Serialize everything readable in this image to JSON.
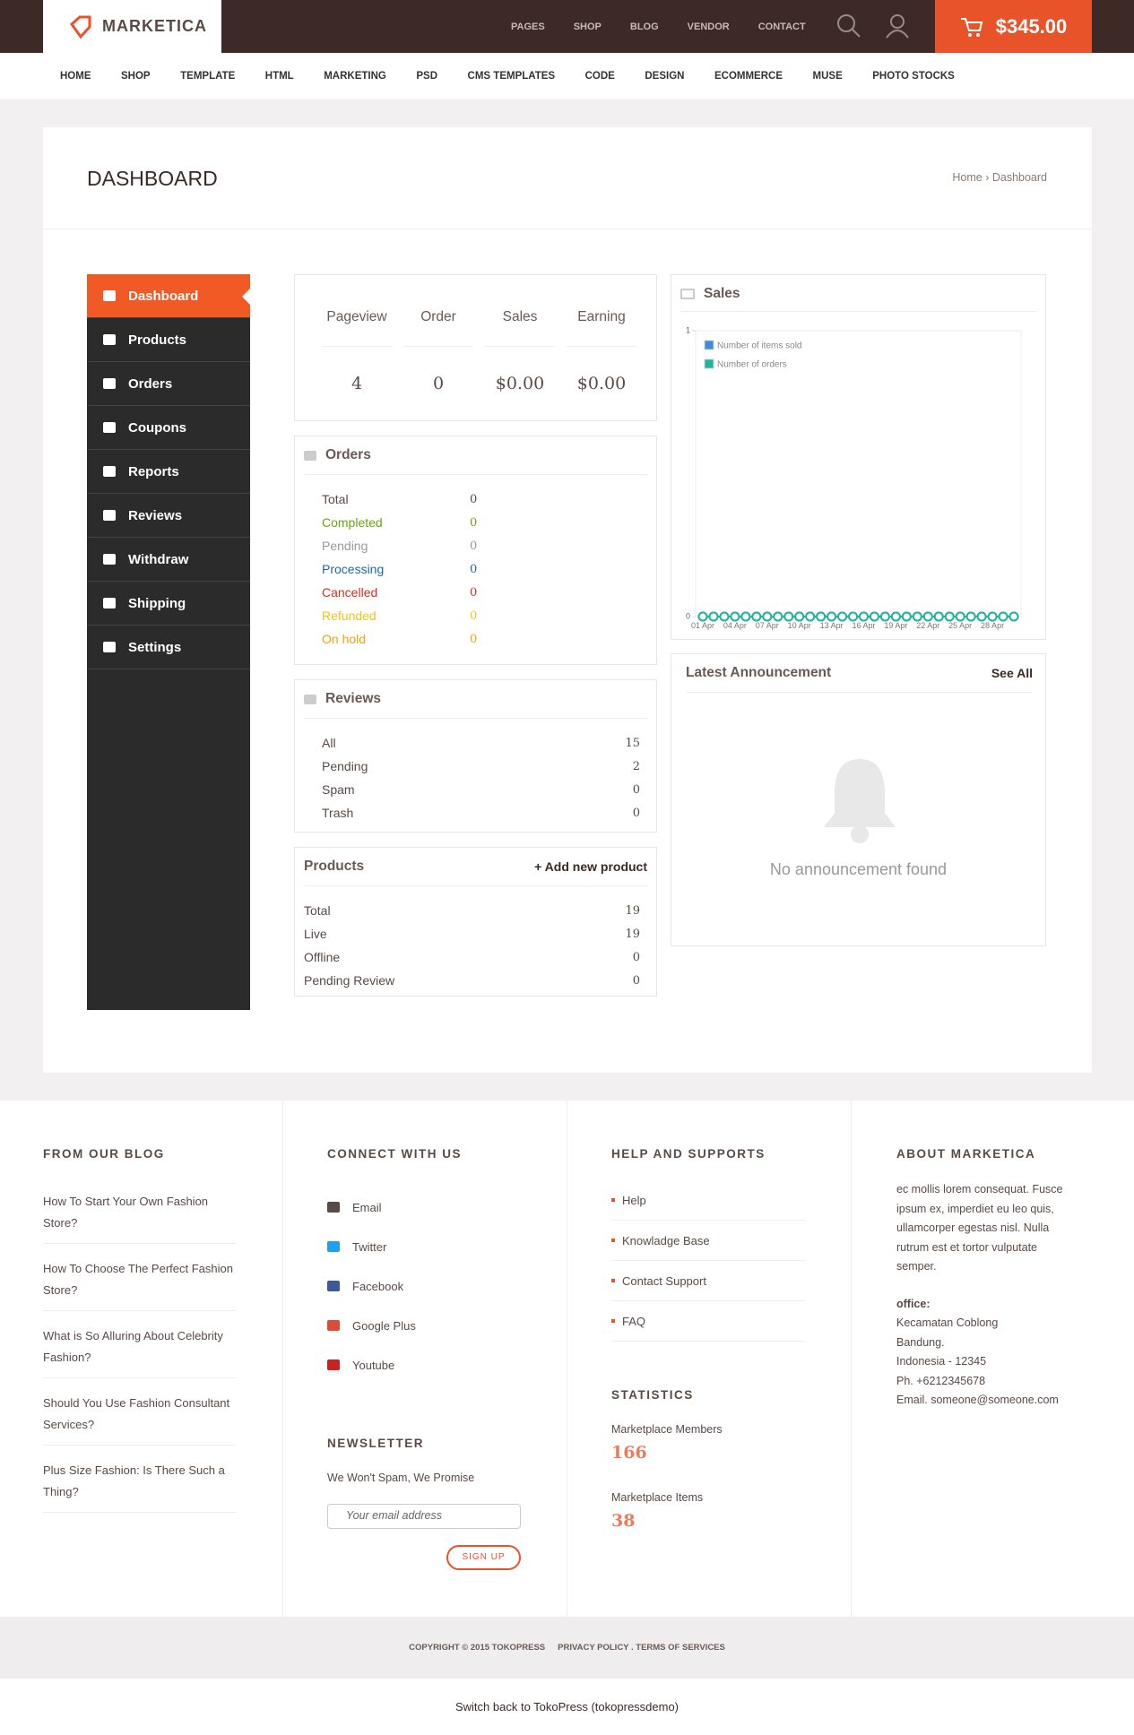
{
  "header": {
    "logo": "MARKETICA",
    "top_links": [
      "PAGES",
      "SHOP",
      "BLOG",
      "VENDOR",
      "CONTACT"
    ],
    "cart_total": "$345.00"
  },
  "nav": [
    "HOME",
    "SHOP",
    "TEMPLATE",
    "HTML",
    "MARKETING",
    "PSD",
    "CMS TEMPLATES",
    "CODE",
    "DESIGN",
    "ECOMMERCE",
    "MUSE",
    "PHOTO STOCKS"
  ],
  "page": {
    "title": "DASHBOARD",
    "breadcrumb": "Home › Dashboard"
  },
  "sidebar": [
    "Dashboard",
    "Products",
    "Orders",
    "Coupons",
    "Reports",
    "Reviews",
    "Withdraw",
    "Shipping",
    "Settings"
  ],
  "stats": {
    "headers": [
      "Pageview",
      "Order",
      "Sales",
      "Earning"
    ],
    "values": [
      4,
      0,
      "$0.00",
      "$0.00"
    ]
  },
  "orders": {
    "title": "Orders",
    "rows": [
      {
        "label": "Total",
        "value": 0
      },
      {
        "label": "Completed",
        "value": 0
      },
      {
        "label": "Pending",
        "value": 0
      },
      {
        "label": "Processing",
        "value": 0
      },
      {
        "label": "Cancelled",
        "value": 0
      },
      {
        "label": "Refunded",
        "value": 0
      },
      {
        "label": "On hold",
        "value": 0
      }
    ]
  },
  "reviews": {
    "title": "Reviews",
    "rows": [
      {
        "label": "All",
        "value": 15
      },
      {
        "label": "Pending",
        "value": 2
      },
      {
        "label": "Spam",
        "value": 0
      },
      {
        "label": "Trash",
        "value": 0
      }
    ]
  },
  "products": {
    "title": "Products",
    "action": "+ Add new product",
    "rows": [
      {
        "label": "Total",
        "value": 19
      },
      {
        "label": "Live",
        "value": 19
      },
      {
        "label": "Offline",
        "value": 0
      },
      {
        "label": "Pending Review",
        "value": 0
      }
    ]
  },
  "sales": {
    "title": "Sales",
    "chart_data": {
      "type": "line",
      "ylim": [
        0,
        1
      ],
      "yticks": [
        0,
        1
      ],
      "categories": [
        "01 Apr",
        null,
        null,
        "04 Apr",
        null,
        null,
        "07 Apr",
        null,
        null,
        "10 Apr",
        null,
        null,
        "13 Apr",
        null,
        null,
        "16 Apr",
        null,
        null,
        "19 Apr",
        null,
        null,
        "22 Apr",
        null,
        null,
        "25 Apr",
        null,
        null,
        "28 Apr",
        null,
        null
      ],
      "series": [
        {
          "name": "Number of items sold",
          "color": "#3b8ed6",
          "values": [
            0,
            0,
            0,
            0,
            0,
            0,
            0,
            0,
            0,
            0,
            0,
            0,
            0,
            0,
            0,
            0,
            0,
            0,
            0,
            0,
            0,
            0,
            0,
            0,
            0,
            0,
            0,
            0,
            0,
            0
          ]
        },
        {
          "name": "Number of orders",
          "color": "#1fb59c",
          "values": [
            0,
            0,
            0,
            0,
            0,
            0,
            0,
            0,
            0,
            0,
            0,
            0,
            0,
            0,
            0,
            0,
            0,
            0,
            0,
            0,
            0,
            0,
            0,
            0,
            0,
            0,
            0,
            0,
            0,
            0
          ]
        }
      ]
    }
  },
  "announcement": {
    "title": "Latest Announcement",
    "link": "See All",
    "empty": "No announcement found"
  },
  "footer": {
    "blog": {
      "title": "FROM OUR BLOG",
      "posts": [
        "How To Start Your Own Fashion Store?",
        "How To Choose The Perfect Fashion Store?",
        "What is So Alluring About Celebrity Fashion?",
        "Should You Use Fashion Consultant Services?",
        "Plus Size Fashion: Is There Such a Thing?"
      ]
    },
    "connect": {
      "title": "CONNECT WITH US",
      "links": [
        "Email",
        "Twitter",
        "Facebook",
        "Google Plus",
        "Youtube"
      ]
    },
    "newsletter": {
      "title": "NEWSLETTER",
      "text": "We Won't Spam, We Promise",
      "placeholder": "Your email address",
      "button": "SIGN UP"
    },
    "help": {
      "title": "HELP AND SUPPORTS",
      "links": [
        "Help",
        "Knowladge Base",
        "Contact Support",
        "FAQ"
      ]
    },
    "statistics": {
      "title": "STATISTICS",
      "items": [
        {
          "label": "Marketplace Members",
          "value": 166
        },
        {
          "label": "Marketplace Items",
          "value": 38
        }
      ]
    },
    "about": {
      "title": "ABOUT MARKETICA",
      "text": "ec mollis lorem consequat. Fusce ipsum ex, imperdiet eu leo quis, ullamcorper egestas nisl. Nulla rutrum est et tortor vulputate semper.",
      "office_label": "office:",
      "office": [
        "Kecamatan Coblong",
        "Bandung.",
        "Indonesia - 12345",
        "Ph. +6212345678",
        "Email. someone@someone.com"
      ]
    },
    "copyright": "COPYRIGHT © 2015 TOKOPRESS",
    "legal": "PRIVACY POLICY . TERMS OF SERVICES",
    "switch": "Switch back to TokoPress (tokopressdemo)"
  }
}
